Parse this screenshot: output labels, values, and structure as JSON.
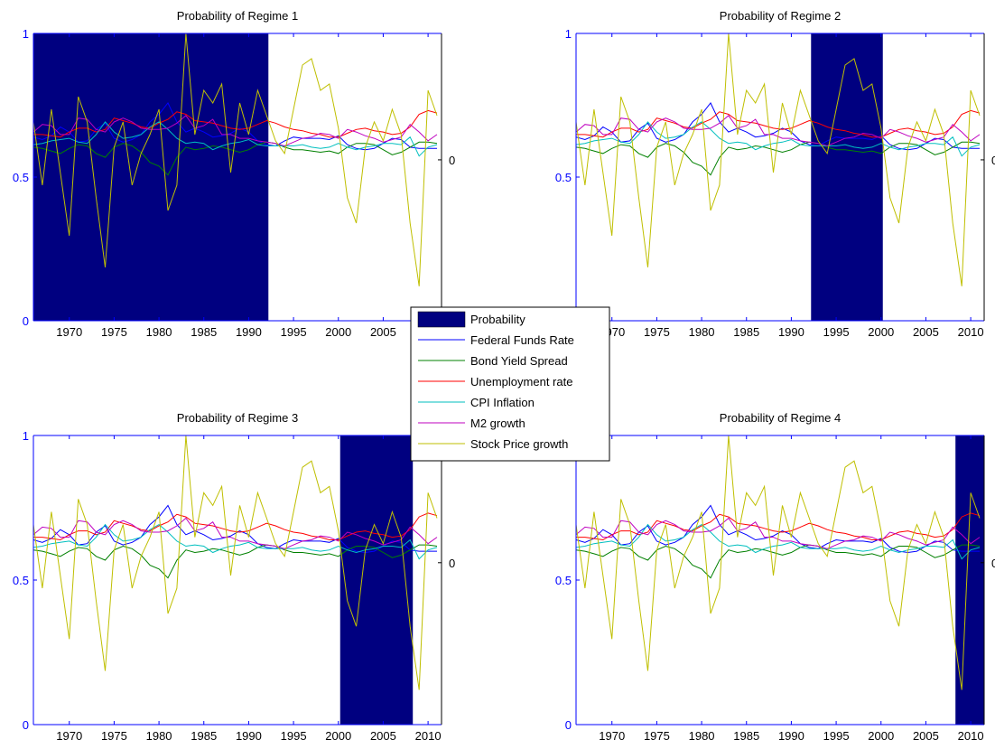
{
  "colors": {
    "probability": "#000080",
    "left_axis": "#0000ff",
    "right_axis": "#000000",
    "federal_funds": "#0000ff",
    "bond_spread": "#008000",
    "unemployment": "#ff0000",
    "cpi": "#00bfbf",
    "m2": "#bf00bf",
    "stock": "#bfbf00"
  },
  "legend": {
    "items": [
      {
        "label": "Probability",
        "kind": "patch",
        "color_key": "probability"
      },
      {
        "label": "Federal Funds Rate",
        "kind": "line",
        "color_key": "federal_funds"
      },
      {
        "label": "Bond Yield Spread",
        "kind": "line",
        "color_key": "bond_spread"
      },
      {
        "label": "Unemployment rate",
        "kind": "line",
        "color_key": "unemployment"
      },
      {
        "label": "CPI Inflation",
        "kind": "line",
        "color_key": "cpi"
      },
      {
        "label": "M2 growth",
        "kind": "line",
        "color_key": "m2"
      },
      {
        "label": "Stock Price growth",
        "kind": "line",
        "color_key": "stock"
      }
    ]
  },
  "chart_data": [
    {
      "type": "area",
      "title": "Probability of Regime 1",
      "xlim": [
        1966,
        2011.5
      ],
      "ylim": [
        0,
        1
      ],
      "x_ticks": [
        1970,
        1975,
        1980,
        1985,
        1990,
        1995,
        2000,
        2005,
        2010
      ],
      "x_tick_labels": [
        "1970",
        "1975",
        "1980",
        "1985",
        "1990",
        "1995",
        "2000",
        "2005",
        "2010"
      ],
      "y_ticks": [
        0,
        0.5,
        1
      ],
      "y_tick_labels": [
        "0",
        "0.5",
        "1"
      ],
      "right_axis_tick_labels": [
        "0"
      ],
      "regime_periods": [
        [
          1966,
          1992.2
        ]
      ]
    },
    {
      "type": "area",
      "title": "Probability of Regime 2",
      "xlim": [
        1966,
        2011.5
      ],
      "ylim": [
        0,
        1
      ],
      "x_ticks": [
        1970,
        1975,
        1980,
        1985,
        1990,
        1995,
        2000,
        2005,
        2010
      ],
      "x_tick_labels": [
        "1970",
        "1975",
        "1980",
        "1985",
        "1990",
        "1995",
        "2000",
        "2005",
        "2010"
      ],
      "y_ticks": [
        0,
        0.5,
        1
      ],
      "y_tick_labels": [
        "0",
        "0.5",
        "1"
      ],
      "right_axis_tick_labels": [
        "0"
      ],
      "regime_periods": [
        [
          1992.2,
          2000.2
        ]
      ]
    },
    {
      "type": "area",
      "title": "Probability of Regime 3",
      "xlim": [
        1966,
        2011.5
      ],
      "ylim": [
        0,
        1
      ],
      "x_ticks": [
        1970,
        1975,
        1980,
        1985,
        1990,
        1995,
        2000,
        2005,
        2010
      ],
      "x_tick_labels": [
        "1970",
        "1975",
        "1980",
        "1985",
        "1990",
        "1995",
        "2000",
        "2005",
        "2010"
      ],
      "y_ticks": [
        0,
        0.5,
        1
      ],
      "y_tick_labels": [
        "0",
        "0.5",
        "1"
      ],
      "right_axis_tick_labels": [
        "0"
      ],
      "regime_periods": [
        [
          2000.2,
          2008.3
        ]
      ]
    },
    {
      "type": "area",
      "title": "Probability of Regime 4",
      "xlim": [
        1966,
        2011.5
      ],
      "ylim": [
        0,
        1
      ],
      "x_ticks": [
        1970,
        1975,
        1980,
        1985,
        1990,
        1995,
        2000,
        2005,
        2010
      ],
      "x_tick_labels": [
        "1970",
        "1975",
        "1980",
        "1985",
        "1990",
        "1995",
        "2000",
        "2005",
        "2010"
      ],
      "y_ticks": [
        0,
        0.5,
        1
      ],
      "y_tick_labels": [
        "0",
        "0.5",
        "1"
      ],
      "right_axis_tick_labels": [
        "0"
      ],
      "regime_periods": [
        [
          2008.3,
          2011.5
        ]
      ]
    }
  ],
  "series_overlay": {
    "y_range": [
      -1,
      1
    ],
    "x": [
      1966,
      1967,
      1968,
      1969,
      1970,
      1971,
      1972,
      1973,
      1974,
      1975,
      1976,
      1977,
      1978,
      1979,
      1980,
      1981,
      1982,
      1983,
      1984,
      1985,
      1986,
      1987,
      1988,
      1989,
      1990,
      1991,
      1992,
      1993,
      1994,
      1995,
      1996,
      1997,
      1998,
      1999,
      2000,
      2001,
      2002,
      2003,
      2004,
      2005,
      2006,
      2007,
      2008,
      2009,
      2010,
      2011
    ],
    "series": [
      {
        "name": "Federal Funds Rate",
        "color_key": "federal_funds",
        "values": [
          0.18,
          0.16,
          0.19,
          0.26,
          0.22,
          0.14,
          0.15,
          0.24,
          0.29,
          0.17,
          0.14,
          0.16,
          0.2,
          0.3,
          0.36,
          0.45,
          0.3,
          0.22,
          0.25,
          0.22,
          0.18,
          0.19,
          0.21,
          0.25,
          0.22,
          0.15,
          0.12,
          0.11,
          0.15,
          0.18,
          0.17,
          0.17,
          0.17,
          0.16,
          0.19,
          0.12,
          0.09,
          0.08,
          0.09,
          0.13,
          0.17,
          0.16,
          0.1,
          0.09,
          0.09,
          0.09
        ]
      },
      {
        "name": "Bond Yield Spread",
        "color_key": "bond_spread",
        "values": [
          0.1,
          0.09,
          0.07,
          0.05,
          0.09,
          0.12,
          0.11,
          0.05,
          0.02,
          0.1,
          0.13,
          0.11,
          0.06,
          -0.02,
          -0.05,
          -0.12,
          0.02,
          0.1,
          0.08,
          0.09,
          0.11,
          0.1,
          0.08,
          0.06,
          0.08,
          0.12,
          0.14,
          0.13,
          0.1,
          0.08,
          0.08,
          0.07,
          0.06,
          0.07,
          0.05,
          0.1,
          0.13,
          0.13,
          0.12,
          0.08,
          0.04,
          0.06,
          0.1,
          0.14,
          0.14,
          0.13
        ]
      },
      {
        "name": "Unemployment rate",
        "color_key": "unemployment",
        "values": [
          0.2,
          0.2,
          0.19,
          0.18,
          0.22,
          0.25,
          0.25,
          0.22,
          0.24,
          0.33,
          0.31,
          0.29,
          0.26,
          0.25,
          0.29,
          0.32,
          0.38,
          0.36,
          0.31,
          0.3,
          0.29,
          0.27,
          0.25,
          0.24,
          0.25,
          0.28,
          0.31,
          0.29,
          0.26,
          0.24,
          0.23,
          0.21,
          0.2,
          0.18,
          0.18,
          0.21,
          0.24,
          0.25,
          0.23,
          0.22,
          0.2,
          0.21,
          0.26,
          0.36,
          0.39,
          0.37
        ]
      },
      {
        "name": "CPI Inflation",
        "color_key": "cpi",
        "values": [
          0.12,
          0.13,
          0.15,
          0.16,
          0.17,
          0.14,
          0.13,
          0.2,
          0.3,
          0.22,
          0.17,
          0.18,
          0.2,
          0.26,
          0.3,
          0.24,
          0.17,
          0.13,
          0.14,
          0.13,
          0.08,
          0.11,
          0.13,
          0.14,
          0.16,
          0.12,
          0.11,
          0.11,
          0.11,
          0.11,
          0.12,
          0.1,
          0.09,
          0.1,
          0.13,
          0.1,
          0.08,
          0.1,
          0.11,
          0.13,
          0.13,
          0.12,
          0.18,
          0.03,
          0.1,
          0.12
        ]
      },
      {
        "name": "M2 growth",
        "color_key": "m2",
        "values": [
          0.22,
          0.28,
          0.27,
          0.2,
          0.2,
          0.33,
          0.32,
          0.24,
          0.22,
          0.3,
          0.33,
          0.3,
          0.25,
          0.24,
          0.24,
          0.25,
          0.29,
          0.35,
          0.25,
          0.27,
          0.32,
          0.2,
          0.2,
          0.17,
          0.17,
          0.15,
          0.14,
          0.13,
          0.11,
          0.14,
          0.17,
          0.18,
          0.21,
          0.2,
          0.17,
          0.24,
          0.22,
          0.19,
          0.17,
          0.14,
          0.16,
          0.18,
          0.28,
          0.22,
          0.15,
          0.2
        ]
      },
      {
        "name": "Stock Price growth",
        "color_key": "stock",
        "values": [
          0.3,
          -0.2,
          0.4,
          -0.1,
          -0.6,
          0.5,
          0.3,
          -0.3,
          -0.85,
          0.1,
          0.3,
          -0.2,
          0.05,
          0.2,
          0.4,
          -0.4,
          -0.2,
          1.0,
          0.2,
          0.55,
          0.45,
          0.6,
          -0.1,
          0.45,
          0.2,
          0.55,
          0.35,
          0.15,
          0.05,
          0.4,
          0.75,
          0.8,
          0.55,
          0.6,
          0.25,
          -0.3,
          -0.5,
          0.1,
          0.3,
          0.15,
          0.4,
          0.2,
          -0.5,
          -1.0,
          0.55,
          0.35
        ]
      }
    ]
  }
}
